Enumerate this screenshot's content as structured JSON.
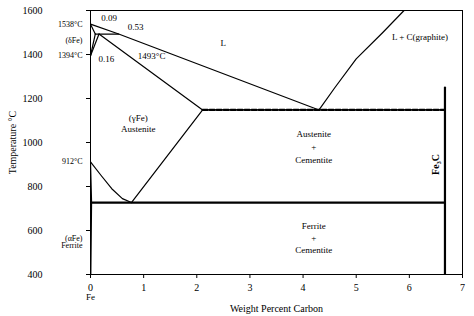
{
  "chart_data": {
    "type": "line",
    "xlabel": "Weight Percent Carbon",
    "ylabel": "Temperature °C",
    "xlim": [
      0,
      7
    ],
    "xticks": [
      0,
      1,
      2,
      3,
      4,
      5,
      6,
      7
    ],
    "ylim": [
      400,
      1600
    ],
    "yticks": [
      400,
      600,
      800,
      1000,
      1200,
      1400,
      1600
    ],
    "series": [
      {
        "color": "#000000",
        "line_style": "solid",
        "x": [
          0,
          0.53,
          4.3
        ],
        "values": [
          1538,
          1493,
          1148
        ]
      },
      {
        "color": "#000000",
        "line_style": "solid",
        "x": [
          0,
          0.09
        ],
        "values": [
          1538,
          1493
        ]
      },
      {
        "color": "#000000",
        "line_style": "solid",
        "x": [
          0.09,
          0.53
        ],
        "values": [
          1493,
          1493
        ]
      },
      {
        "color": "#000000",
        "line_style": "solid",
        "x": [
          0,
          0.09
        ],
        "values": [
          1394,
          1493
        ]
      },
      {
        "color": "#000000",
        "line_style": "solid",
        "x": [
          0,
          0.16
        ],
        "values": [
          1394,
          1493
        ]
      },
      {
        "color": "#000000",
        "line_style": "solid",
        "x": [
          0.16,
          2.11
        ],
        "values": [
          1493,
          1148
        ]
      },
      {
        "color": "#000000",
        "line_style": "dashed",
        "x": [
          2.11,
          6.67
        ],
        "values": [
          1148,
          1148
        ]
      },
      {
        "color": "#000000",
        "line_style": "solid",
        "x": [
          4.3,
          4.6,
          5.0,
          5.5,
          5.9
        ],
        "values": [
          1148,
          1250,
          1380,
          1500,
          1600
        ]
      },
      {
        "color": "#000000",
        "line_style": "solid",
        "x": [
          0.77,
          2.11
        ],
        "values": [
          727,
          1148
        ]
      },
      {
        "color": "#000000",
        "line_style": "solid",
        "x": [
          0,
          0.2,
          0.4,
          0.6,
          0.77
        ],
        "values": [
          912,
          850,
          790,
          745,
          727
        ]
      },
      {
        "color": "#000000",
        "line_style": "solid",
        "x": [
          0,
          0.02,
          0.006
        ],
        "values": [
          912,
          727,
          400
        ]
      },
      {
        "color": "#000000",
        "line_style": "bold",
        "x": [
          0.02,
          6.67
        ],
        "values": [
          727,
          727
        ]
      },
      {
        "color": "#000000",
        "line_style": "bold",
        "x": [
          6.67,
          6.67
        ],
        "values": [
          400,
          1250
        ]
      }
    ],
    "annotations": [
      {
        "x": 2.5,
        "y": 1450,
        "text": "L"
      },
      {
        "x": 6.2,
        "y": 1480,
        "text": "L + C(graphite)"
      },
      {
        "x": 0.35,
        "y": 1565,
        "text": "0.09"
      },
      {
        "x": 0.85,
        "y": 1525,
        "text": "0.53"
      },
      {
        "x": 0.3,
        "y": 1380,
        "text": "0.16"
      },
      {
        "x": 1.15,
        "y": 1392,
        "text": "1493°C"
      },
      {
        "x": 0.9,
        "y": 1110,
        "text": "(γFe)"
      },
      {
        "x": 0.9,
        "y": 1060,
        "text": "Austenite"
      },
      {
        "x": 4.2,
        "y": 1040,
        "text": "Austenite"
      },
      {
        "x": 4.2,
        "y": 980,
        "text": "+"
      },
      {
        "x": 4.2,
        "y": 920,
        "text": "Cementite"
      },
      {
        "x": 4.2,
        "y": 620,
        "text": "Ferrite"
      },
      {
        "x": 4.2,
        "y": 565,
        "text": "+"
      },
      {
        "x": 4.2,
        "y": 510,
        "text": "Cementite"
      },
      {
        "x": 6.5,
        "y": 900,
        "text": "Fe₃C",
        "orientation": "vertical"
      }
    ],
    "axis_annotations": [
      {
        "y": 1538,
        "text": "1538°C"
      },
      {
        "y": 1465,
        "text": "(δFe)"
      },
      {
        "y": 1394,
        "text": "1394°C"
      },
      {
        "y": 912,
        "text": "912°C"
      },
      {
        "y": 565,
        "text": "(αFe)"
      },
      {
        "y": 530,
        "text": "Ferrite"
      }
    ],
    "x_axis_annotations": [
      {
        "x": 0,
        "text": "Fe"
      }
    ]
  }
}
